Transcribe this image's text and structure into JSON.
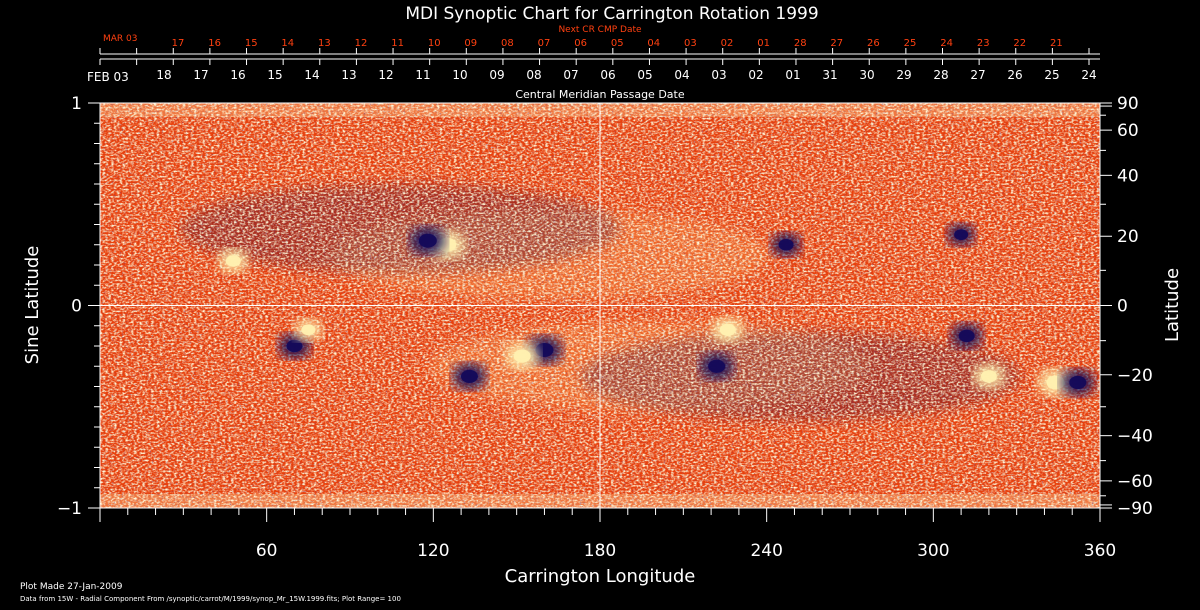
{
  "chart_data": {
    "type": "heatmap",
    "title": "MDI Synoptic Chart for Carrington Rotation 1999",
    "xlabel": "Carrington Longitude",
    "ylabel_left": "Sine Latitude",
    "ylabel_right": "Latitude",
    "xlim": [
      0,
      360
    ],
    "ylim": [
      -1,
      1
    ],
    "x_ticks": [
      60,
      120,
      180,
      240,
      300,
      360
    ],
    "y_ticks_left": [
      {
        "value": 1,
        "label": "1"
      },
      {
        "value": 0,
        "label": "0"
      },
      {
        "value": -1,
        "label": "−1"
      }
    ],
    "y_ticks_right": [
      90,
      60,
      40,
      20,
      0,
      -20,
      -40,
      -60,
      -90
    ],
    "y_ticks_right_labels": [
      "90",
      "60",
      "40",
      "20",
      "0",
      "−20",
      "−40",
      "−60",
      "−90"
    ],
    "top_axis_outer": {
      "label": "Next CR CMP Date",
      "month_label": "MAR 03",
      "days": [
        "17",
        "16",
        "15",
        "14",
        "13",
        "12",
        "11",
        "10",
        "09",
        "08",
        "07",
        "06",
        "05",
        "04",
        "03",
        "02",
        "01",
        "28",
        "27",
        "26",
        "25",
        "24",
        "23",
        "22",
        "21"
      ],
      "color": "#ff4010"
    },
    "top_axis_inner": {
      "label": "Central Meridian Passage Date",
      "month_label": "FEB 03",
      "days": [
        "18",
        "17",
        "16",
        "15",
        "14",
        "13",
        "12",
        "11",
        "10",
        "09",
        "08",
        "07",
        "06",
        "05",
        "04",
        "03",
        "02",
        "01",
        "31",
        "30",
        "29",
        "28",
        "27",
        "26",
        "25",
        "24"
      ],
      "color": "#ffffff"
    },
    "colors": {
      "background": "#000000",
      "field_base": "#e8400c",
      "positive_polarity": "#fff0b0",
      "negative_polarity": "#140a5a",
      "axes": "#ffffff"
    },
    "grid": false,
    "reference_lines": [
      {
        "axis": "x",
        "value": 180
      },
      {
        "axis": "y",
        "value": 0
      }
    ],
    "active_regions": [
      {
        "lon": 125,
        "sinlat": 0.3,
        "strength": 1.0
      },
      {
        "lon": 118,
        "sinlat": 0.32,
        "strength": -1.0
      },
      {
        "lon": 160,
        "sinlat": -0.22,
        "strength": -1.0
      },
      {
        "lon": 152,
        "sinlat": -0.25,
        "strength": 0.9
      },
      {
        "lon": 133,
        "sinlat": -0.35,
        "strength": -0.9
      },
      {
        "lon": 226,
        "sinlat": -0.12,
        "strength": 0.8
      },
      {
        "lon": 222,
        "sinlat": -0.3,
        "strength": -0.9
      },
      {
        "lon": 247,
        "sinlat": 0.3,
        "strength": -0.7
      },
      {
        "lon": 320,
        "sinlat": -0.35,
        "strength": 0.8
      },
      {
        "lon": 344,
        "sinlat": -0.38,
        "strength": 1.0
      },
      {
        "lon": 352,
        "sinlat": -0.38,
        "strength": -0.9
      },
      {
        "lon": 312,
        "sinlat": -0.15,
        "strength": -0.8
      },
      {
        "lon": 48,
        "sinlat": 0.22,
        "strength": 0.7
      },
      {
        "lon": 70,
        "sinlat": -0.2,
        "strength": -0.8
      },
      {
        "lon": 75,
        "sinlat": -0.12,
        "strength": 0.6
      },
      {
        "lon": 310,
        "sinlat": 0.35,
        "strength": -0.6
      }
    ]
  },
  "footer": {
    "plot_made": "Plot Made 27-Jan-2009",
    "data_from": "Data from 15W - Radial Component From /synoptic/carrot/M/1999/synop_Mr_15W.1999.fits; Plot Range= 100"
  }
}
